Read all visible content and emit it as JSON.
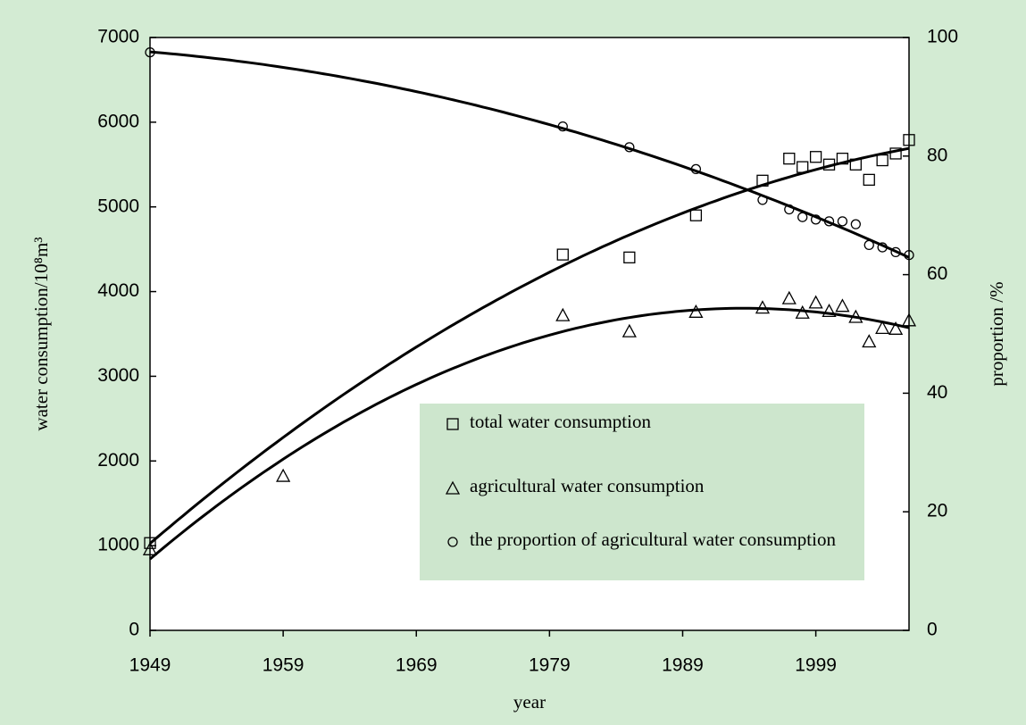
{
  "chart_data": {
    "type": "scatter",
    "x_label": "year",
    "y_label": "water consumption/10⁸m³",
    "y2_label": "proportion /%",
    "xlim": [
      1949,
      2006
    ],
    "xticks": [
      1949,
      1959,
      1969,
      1979,
      1989,
      1999
    ],
    "ylim": [
      0,
      7000
    ],
    "yticks": [
      0,
      1000,
      2000,
      3000,
      4000,
      5000,
      6000,
      7000
    ],
    "y2lim": [
      0,
      100
    ],
    "y2ticks": [
      0,
      20,
      40,
      60,
      80,
      100
    ],
    "trendline": "polynomial",
    "trendline_order": 2,
    "series": [
      {
        "name": "total water consumption",
        "color": "#000000",
        "marker": "square",
        "x": [
          1949,
          1980,
          1985,
          1990,
          1995,
          1997,
          1998,
          1999,
          2000,
          2001,
          2002,
          2003,
          2004,
          2005,
          2006
        ],
        "values": [
          1031,
          4437,
          4403,
          4900,
          5310,
          5570,
          5470,
          5590,
          5500,
          5570,
          5500,
          5320,
          5550,
          5630,
          5790
        ]
      },
      {
        "name": "agricultural water consumption",
        "color": "#000000",
        "marker": "triangle",
        "x": [
          1949,
          1959,
          1980,
          1985,
          1990,
          1995,
          1997,
          1998,
          1999,
          2000,
          2001,
          2002,
          2003,
          2004,
          2005,
          2006
        ],
        "values": [
          956,
          1823,
          3720,
          3530,
          3760,
          3810,
          3920,
          3750,
          3870,
          3770,
          3830,
          3700,
          3410,
          3570,
          3560,
          3660
        ]
      },
      {
        "name": "the proportion of agricultural water consumption",
        "color": "#000000",
        "marker": "circle",
        "axis": "y2",
        "x": [
          1949,
          1980,
          1985,
          1990,
          1995,
          1997,
          1998,
          1999,
          2000,
          2001,
          2002,
          2003,
          2004,
          2005,
          2006
        ],
        "values": [
          97.5,
          85,
          81.5,
          77.8,
          72.6,
          71,
          69.7,
          69.3,
          69,
          69,
          68.5,
          65,
          64.6,
          63.8,
          63.3
        ]
      }
    ]
  }
}
